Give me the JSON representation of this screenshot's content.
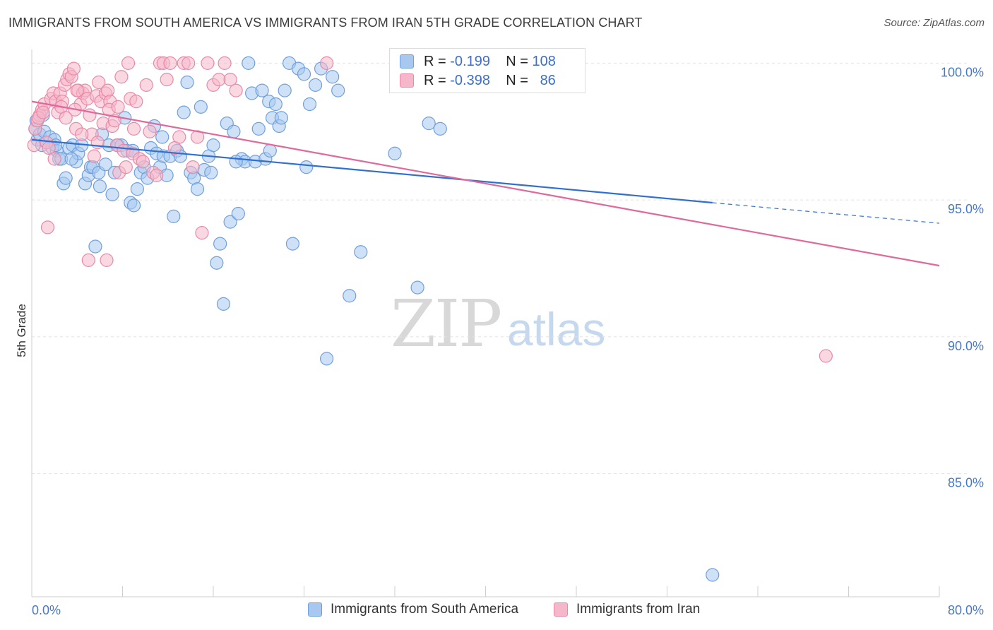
{
  "title": "IMMIGRANTS FROM SOUTH AMERICA VS IMMIGRANTS FROM IRAN 5TH GRADE CORRELATION CHART",
  "source": "Source: ZipAtlas.com",
  "watermark": {
    "zip": "ZIP",
    "atlas": "atlas"
  },
  "stats": {
    "r_label": "R =",
    "n_label": "N =",
    "series1": {
      "r": "-0.199",
      "n": "108"
    },
    "series2": {
      "r": "-0.398",
      "n": "86"
    }
  },
  "legend": {
    "series1": "Immigrants from South America",
    "series2": "Immigrants from Iran"
  },
  "colors": {
    "blue_fill": "#a8c8ef",
    "blue_stroke": "#6f9fdd",
    "blue_line": "#2f6fd0",
    "pink_fill": "#f5b8ca",
    "pink_stroke": "#e889a8",
    "pink_line": "#e0689a",
    "grid": "#e2e2e2",
    "tick_text": "#4a78c8"
  },
  "chart_data": {
    "type": "scatter",
    "title": "IMMIGRANTS FROM SOUTH AMERICA VS IMMIGRANTS FROM IRAN 5TH GRADE CORRELATION CHART",
    "xlabel": "",
    "ylabel": "5th Grade",
    "xlim": [
      0,
      80
    ],
    "ylim": [
      80.5,
      100.5
    ],
    "x_tick_labels": [
      {
        "value": 0,
        "label": "0.0%"
      },
      {
        "value": 80,
        "label": "80.0%"
      }
    ],
    "y_tick_labels": [
      {
        "value": 100,
        "label": "100.0%"
      },
      {
        "value": 95,
        "label": "95.0%"
      },
      {
        "value": 90,
        "label": "90.0%"
      },
      {
        "value": 85,
        "label": "85.0%"
      }
    ],
    "series": [
      {
        "name": "Immigrants from South America",
        "color": "#6f9fdd",
        "trend": {
          "x0": 0,
          "y0": 97.2,
          "x1": 60,
          "y1": 94.9,
          "dash_to": 80,
          "dash_y": 94.15
        },
        "points": [
          [
            0.3,
            97.6
          ],
          [
            0.5,
            97.2
          ],
          [
            0.7,
            97.4
          ],
          [
            0.9,
            97.0
          ],
          [
            1.1,
            97.5
          ],
          [
            1.3,
            97.1
          ],
          [
            1.6,
            97.3
          ],
          [
            1.8,
            96.9
          ],
          [
            2.0,
            97.2
          ],
          [
            2.2,
            96.8
          ],
          [
            2.4,
            96.5
          ],
          [
            2.6,
            96.5
          ],
          [
            2.8,
            95.6
          ],
          [
            3.0,
            95.8
          ],
          [
            3.3,
            96.9
          ],
          [
            3.6,
            97.0
          ],
          [
            3.9,
            96.4
          ],
          [
            4.1,
            96.7
          ],
          [
            4.4,
            97.0
          ],
          [
            4.7,
            95.6
          ],
          [
            5.0,
            95.9
          ],
          [
            5.2,
            96.2
          ],
          [
            5.4,
            96.2
          ],
          [
            5.6,
            93.3
          ],
          [
            5.9,
            96.0
          ],
          [
            6.2,
            97.4
          ],
          [
            6.5,
            96.3
          ],
          [
            6.8,
            97.0
          ],
          [
            7.1,
            95.2
          ],
          [
            7.3,
            96.0
          ],
          [
            7.6,
            97.0
          ],
          [
            7.9,
            97.0
          ],
          [
            8.2,
            98.0
          ],
          [
            8.4,
            96.8
          ],
          [
            8.7,
            94.9
          ],
          [
            9.0,
            94.8
          ],
          [
            9.3,
            95.4
          ],
          [
            9.6,
            96.0
          ],
          [
            9.9,
            96.2
          ],
          [
            10.2,
            95.8
          ],
          [
            10.5,
            96.9
          ],
          [
            10.8,
            97.7
          ],
          [
            11.0,
            96.7
          ],
          [
            11.3,
            96.2
          ],
          [
            11.6,
            96.6
          ],
          [
            11.9,
            95.9
          ],
          [
            12.2,
            96.6
          ],
          [
            12.5,
            94.4
          ],
          [
            12.8,
            96.8
          ],
          [
            13.1,
            96.6
          ],
          [
            13.4,
            98.2
          ],
          [
            13.7,
            99.3
          ],
          [
            14.0,
            96.0
          ],
          [
            14.3,
            95.8
          ],
          [
            14.6,
            95.4
          ],
          [
            14.9,
            98.4
          ],
          [
            15.2,
            96.1
          ],
          [
            15.6,
            96.6
          ],
          [
            16.0,
            97.0
          ],
          [
            16.3,
            92.7
          ],
          [
            16.6,
            93.4
          ],
          [
            16.9,
            91.2
          ],
          [
            17.2,
            97.8
          ],
          [
            17.5,
            94.2
          ],
          [
            17.8,
            97.5
          ],
          [
            18.2,
            94.5
          ],
          [
            18.5,
            96.5
          ],
          [
            18.8,
            96.4
          ],
          [
            19.1,
            100.0
          ],
          [
            19.4,
            98.9
          ],
          [
            19.7,
            96.4
          ],
          [
            20.0,
            97.6
          ],
          [
            20.3,
            99.0
          ],
          [
            20.6,
            96.5
          ],
          [
            20.9,
            98.6
          ],
          [
            21.2,
            98.0
          ],
          [
            21.5,
            98.5
          ],
          [
            21.8,
            97.7
          ],
          [
            22.0,
            98.0
          ],
          [
            22.3,
            99.0
          ],
          [
            22.7,
            100.0
          ],
          [
            23.0,
            93.4
          ],
          [
            23.5,
            99.8
          ],
          [
            24.0,
            99.6
          ],
          [
            24.5,
            98.5
          ],
          [
            25.0,
            99.2
          ],
          [
            25.5,
            99.8
          ],
          [
            26.0,
            89.2
          ],
          [
            26.5,
            99.5
          ],
          [
            27.0,
            99.0
          ],
          [
            28.0,
            91.5
          ],
          [
            29.0,
            93.1
          ],
          [
            32.0,
            96.7
          ],
          [
            34.0,
            91.8
          ],
          [
            35.0,
            97.8
          ],
          [
            36.0,
            97.6
          ],
          [
            60.0,
            81.3
          ],
          [
            0.4,
            97.9
          ],
          [
            1.0,
            98.1
          ],
          [
            2.1,
            97.0
          ],
          [
            3.5,
            96.5
          ],
          [
            6.0,
            95.5
          ],
          [
            8.9,
            96.8
          ],
          [
            11.5,
            97.3
          ],
          [
            15.8,
            96.0
          ],
          [
            18.0,
            96.4
          ],
          [
            21.0,
            96.8
          ],
          [
            24.2,
            96.2
          ]
        ]
      },
      {
        "name": "Immigrants from Iran",
        "color": "#e889a8",
        "trend": {
          "x0": 0,
          "y0": 98.6,
          "x1": 80,
          "y1": 92.6
        },
        "points": [
          [
            0.2,
            97.0
          ],
          [
            0.3,
            97.6
          ],
          [
            0.5,
            97.9
          ],
          [
            0.7,
            98.1
          ],
          [
            0.9,
            98.3
          ],
          [
            1.1,
            98.5
          ],
          [
            1.3,
            97.1
          ],
          [
            1.5,
            96.9
          ],
          [
            1.7,
            98.7
          ],
          [
            1.9,
            98.9
          ],
          [
            2.1,
            98.6
          ],
          [
            2.3,
            98.2
          ],
          [
            2.5,
            98.9
          ],
          [
            2.7,
            98.6
          ],
          [
            2.9,
            99.2
          ],
          [
            3.1,
            99.4
          ],
          [
            3.3,
            99.6
          ],
          [
            3.5,
            99.5
          ],
          [
            3.7,
            99.8
          ],
          [
            3.9,
            97.6
          ],
          [
            4.1,
            99.0
          ],
          [
            4.3,
            98.5
          ],
          [
            4.5,
            98.9
          ],
          [
            4.7,
            99.0
          ],
          [
            4.9,
            98.7
          ],
          [
            5.1,
            98.1
          ],
          [
            5.3,
            97.4
          ],
          [
            5.5,
            96.6
          ],
          [
            5.7,
            98.8
          ],
          [
            5.9,
            99.3
          ],
          [
            6.1,
            98.6
          ],
          [
            6.3,
            97.8
          ],
          [
            6.5,
            98.9
          ],
          [
            6.7,
            99.0
          ],
          [
            6.9,
            98.6
          ],
          [
            7.1,
            97.7
          ],
          [
            7.3,
            97.9
          ],
          [
            7.5,
            97.0
          ],
          [
            7.7,
            96.0
          ],
          [
            7.9,
            99.5
          ],
          [
            8.1,
            96.8
          ],
          [
            8.3,
            96.2
          ],
          [
            8.5,
            100.0
          ],
          [
            8.7,
            98.7
          ],
          [
            8.9,
            96.7
          ],
          [
            9.2,
            98.6
          ],
          [
            9.5,
            96.5
          ],
          [
            9.8,
            96.4
          ],
          [
            10.1,
            99.2
          ],
          [
            10.4,
            97.5
          ],
          [
            10.7,
            96.0
          ],
          [
            11.0,
            95.9
          ],
          [
            11.3,
            100.0
          ],
          [
            11.6,
            100.0
          ],
          [
            11.9,
            99.4
          ],
          [
            12.2,
            100.0
          ],
          [
            12.6,
            96.9
          ],
          [
            13.0,
            97.3
          ],
          [
            13.4,
            100.0
          ],
          [
            13.8,
            100.0
          ],
          [
            14.2,
            96.2
          ],
          [
            14.6,
            97.3
          ],
          [
            15.0,
            93.8
          ],
          [
            15.5,
            100.0
          ],
          [
            16.0,
            99.2
          ],
          [
            16.5,
            99.4
          ],
          [
            17.0,
            100.0
          ],
          [
            17.5,
            99.4
          ],
          [
            18.0,
            99.0
          ],
          [
            26.0,
            100.0
          ],
          [
            70.0,
            89.3
          ],
          [
            1.4,
            94.0
          ],
          [
            5.0,
            92.8
          ],
          [
            6.6,
            92.8
          ],
          [
            2.6,
            98.4
          ],
          [
            3.8,
            98.3
          ],
          [
            4.4,
            97.4
          ],
          [
            0.6,
            98.0
          ],
          [
            1.0,
            98.2
          ],
          [
            2.0,
            96.5
          ],
          [
            3.0,
            98.0
          ],
          [
            4.0,
            99.0
          ],
          [
            5.8,
            97.1
          ],
          [
            6.8,
            98.3
          ],
          [
            7.6,
            98.4
          ],
          [
            9.0,
            97.6
          ]
        ]
      }
    ]
  }
}
